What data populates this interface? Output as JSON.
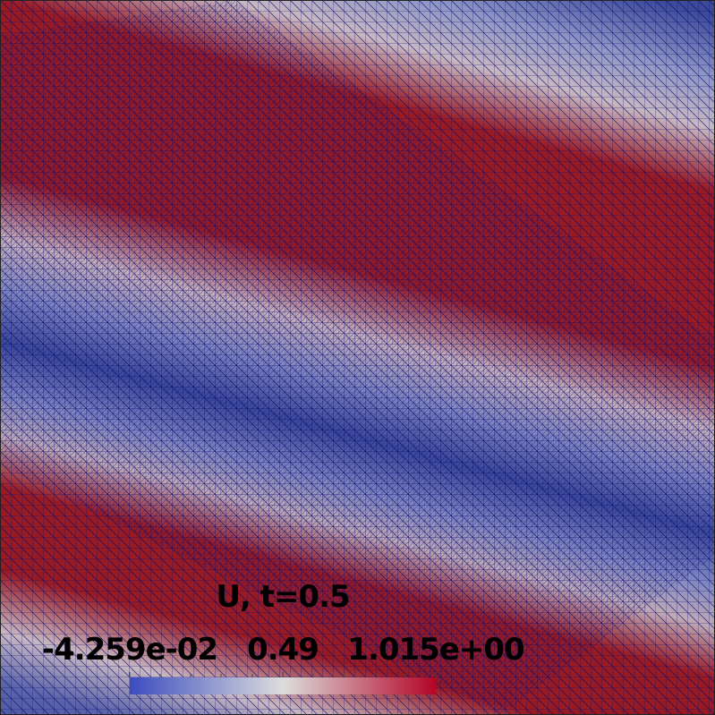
{
  "colorbar": {
    "title": "U, t=0.5",
    "labels": [
      "-4.259e-02",
      "0.49",
      "1.015e+00"
    ]
  }
}
